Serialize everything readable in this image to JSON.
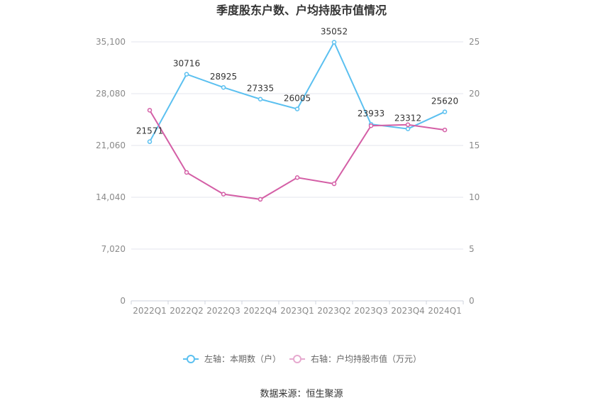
{
  "chart_data": {
    "type": "line",
    "title": "季度股东户数、户均持股市值情况",
    "categories": [
      "2022Q1",
      "2022Q2",
      "2022Q3",
      "2022Q4",
      "2023Q1",
      "2023Q2",
      "2023Q3",
      "2023Q4",
      "2024Q1"
    ],
    "y_left": {
      "ticks": [
        0,
        7020,
        14040,
        21060,
        28080,
        35100
      ],
      "tick_labels": [
        "0",
        "7,020",
        "14,040",
        "21,060",
        "28,080",
        "35,100"
      ],
      "range": [
        0,
        35100
      ]
    },
    "y_right": {
      "ticks": [
        0,
        5,
        10,
        15,
        20,
        25
      ],
      "tick_labels": [
        "0",
        "5",
        "10",
        "15",
        "20",
        "25"
      ],
      "range": [
        0,
        25
      ]
    },
    "series": [
      {
        "name": "左轴：本期数（户）",
        "axis": "left",
        "color": "#5bc0f0",
        "values": [
          21571,
          30716,
          28925,
          27335,
          26005,
          35052,
          23933,
          23312,
          25620
        ],
        "labels": [
          "21571",
          "30716",
          "28925",
          "27335",
          "26005",
          "35052",
          "23933",
          "23312",
          "25620"
        ]
      },
      {
        "name": "右轴：户均持股市值（万元）",
        "axis": "right",
        "color": "#d45fa6",
        "values": [
          18.4,
          12.4,
          10.3,
          9.8,
          11.9,
          11.3,
          16.9,
          17.0,
          16.5
        ]
      }
    ],
    "legend_position": "bottom",
    "grid": true
  },
  "source": "数据来源：恒生聚源"
}
